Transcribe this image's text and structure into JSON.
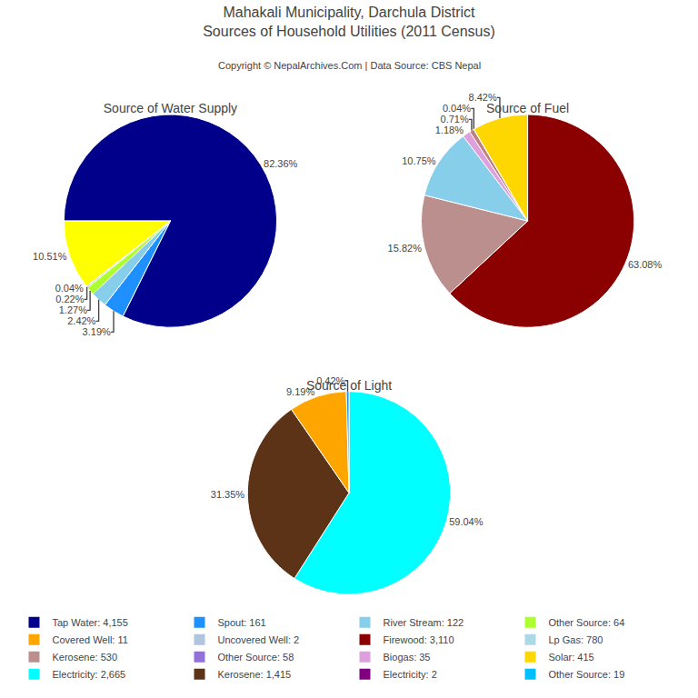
{
  "title": "Mahakali Municipality, Darchula District",
  "subtitle": "Sources of Household Utilities (2011 Census)",
  "annotations": [
    "Copyright © NepalArchives.Com | Data Source: CBS Nepal"
  ],
  "legend_items": [
    {
      "name": "Tap Water: 4,155",
      "color": "#00008B"
    },
    {
      "name": "Spout: 161",
      "color": "#1E90FF"
    },
    {
      "name": "River Stream: 122",
      "color": "#87CEEB"
    },
    {
      "name": "Other Source: 64",
      "color": "#ADFF2F"
    },
    {
      "name": "Covered Well: 11",
      "color": "#FFA500"
    },
    {
      "name": "Uncovered Well: 2",
      "color": "#B0C4DE"
    },
    {
      "name": "Firewood: 3,110",
      "color": "#8B0000"
    },
    {
      "name": "Lp Gas: 780",
      "color": "#ADD8E6"
    },
    {
      "name": "Kerosene: 530",
      "color": "#BC8F8F"
    },
    {
      "name": "Other Source: 58",
      "color": "#9370DB"
    },
    {
      "name": "Biogas: 35",
      "color": "#DDA0DD"
    },
    {
      "name": "Solar: 415",
      "color": "#FFD700"
    },
    {
      "name": "Electricity: 2,665",
      "color": "#00FFFF"
    },
    {
      "name": "Kerosene: 1,415",
      "color": "#5C3317"
    },
    {
      "name": "Electricity: 2",
      "color": "#800080"
    },
    {
      "name": "Other Source: 19",
      "color": "#00BFFF"
    }
  ],
  "chart_data": [
    {
      "type": "pie",
      "title": "Source of Water Supply",
      "values": [
        82.36,
        3.19,
        2.42,
        1.27,
        0.22,
        0.04,
        10.51
      ],
      "value_labels": [
        "82.36%",
        "3.19%",
        "2.42%",
        "1.27%",
        "0.22%",
        "0.04%",
        "10.51%"
      ],
      "colors": [
        "#00008B",
        "#1E90FF",
        "#87CEEB",
        "#ADFF2F",
        "#B0C4DE",
        "#DDA0DD",
        "#FFFF00"
      ],
      "data_labels": true
    },
    {
      "type": "pie",
      "title": "Source of Fuel",
      "values": [
        63.08,
        15.82,
        10.75,
        1.18,
        0.71,
        0.04,
        8.42
      ],
      "value_labels": [
        "63.08%",
        "15.82%",
        "10.75%",
        "1.18%",
        "0.71%",
        "0.04%",
        "8.42%"
      ],
      "colors": [
        "#8B0000",
        "#BC8F8F",
        "#87CEEB",
        "#DDA0DD",
        "#C08080",
        "#800080",
        "#FFD700"
      ],
      "data_labels": true
    },
    {
      "type": "pie",
      "title": "Source of Light",
      "values": [
        59.04,
        31.35,
        9.19,
        0.42
      ],
      "value_labels": [
        "59.04%",
        "31.35%",
        "9.19%",
        "0.42%"
      ],
      "colors": [
        "#00FFFF",
        "#5C3317",
        "#FFA500",
        "#1E90FF"
      ],
      "data_labels": true
    }
  ]
}
